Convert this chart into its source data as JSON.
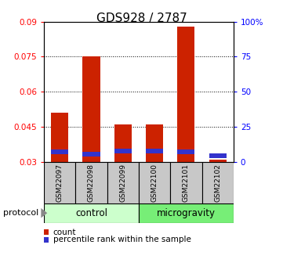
{
  "title": "GDS928 / 2787",
  "samples": [
    "GSM22097",
    "GSM22098",
    "GSM22099",
    "GSM22100",
    "GSM22101",
    "GSM22102"
  ],
  "red_values": [
    0.051,
    0.075,
    0.046,
    0.046,
    0.088,
    0.031
  ],
  "blue_values": [
    0.0335,
    0.0325,
    0.0338,
    0.0338,
    0.0332,
    0.0318
  ],
  "blue_heights": [
    0.002,
    0.002,
    0.002,
    0.002,
    0.002,
    0.002
  ],
  "ymin": 0.03,
  "ymax": 0.09,
  "yticks_left": [
    0.03,
    0.045,
    0.06,
    0.075,
    0.09
  ],
  "yticks_left_labels": [
    "0.03",
    "0.045",
    "0.06",
    "0.075",
    "0.09"
  ],
  "yticks_right_vals": [
    0.03,
    0.045,
    0.06,
    0.075,
    0.09
  ],
  "yticks_right_labels": [
    "0",
    "25",
    "50",
    "75",
    "100%"
  ],
  "control_label": "control",
  "microgravity_label": "microgravity",
  "protocol_label": "protocol",
  "legend_count": "count",
  "legend_percentile": "percentile rank within the sample",
  "bar_color_red": "#cc2200",
  "bar_color_blue": "#3333cc",
  "control_bg": "#ccffcc",
  "microgravity_bg": "#77ee77",
  "sample_box_bg": "#c8c8c8",
  "bar_width": 0.55,
  "title_fontsize": 11
}
